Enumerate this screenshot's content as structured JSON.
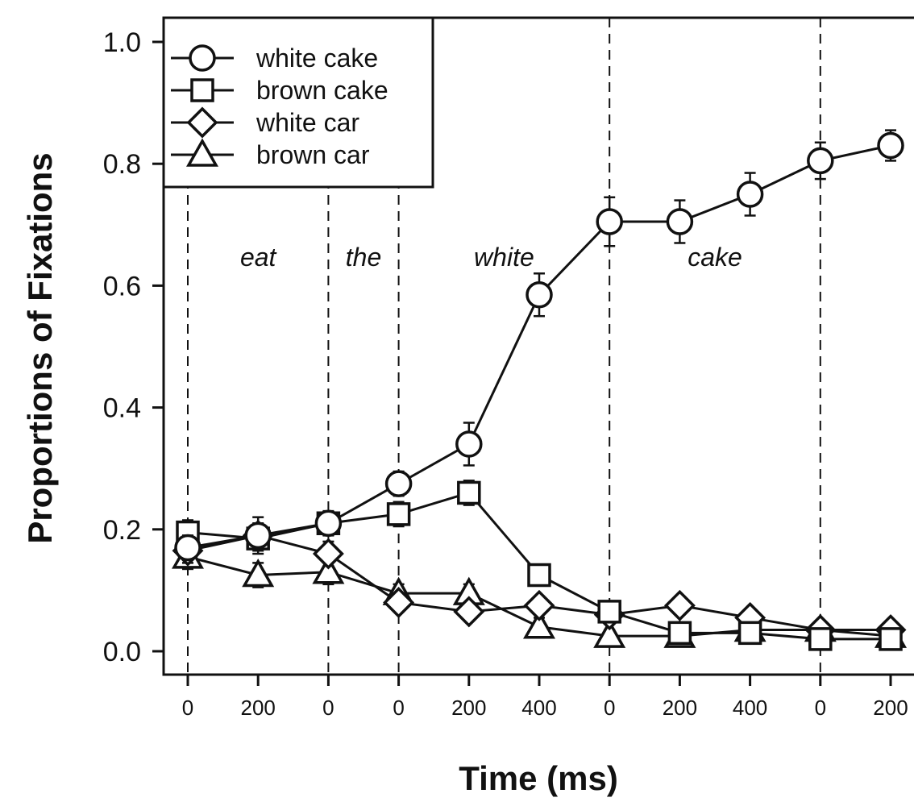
{
  "chart_data": {
    "type": "line",
    "xlabel": "Time (ms)",
    "ylabel": "Proportions of Fixations",
    "ylim": [
      0,
      1.0
    ],
    "yticks": [
      "0.0",
      "0.2",
      "0.4",
      "0.6",
      "0.8",
      "1.0"
    ],
    "x_tick_labels": [
      "0",
      "200",
      "0",
      "0",
      "200",
      "400",
      "0",
      "200",
      "400",
      "0",
      "200"
    ],
    "segments": [
      "eat",
      "the",
      "white",
      "cake"
    ],
    "segment_boundaries_at_tick": [
      0,
      2,
      3,
      6,
      9
    ],
    "legend_position": "top-left",
    "grid": false,
    "series": [
      {
        "name": "white cake",
        "marker": "circle",
        "values": [
          0.17,
          0.19,
          0.21,
          0.275,
          0.34,
          0.585,
          0.705,
          0.705,
          0.75,
          0.805,
          0.83
        ],
        "errors": [
          0.02,
          0.03,
          0.02,
          0.02,
          0.035,
          0.035,
          0.04,
          0.035,
          0.035,
          0.03,
          0.025
        ]
      },
      {
        "name": "brown cake",
        "marker": "square",
        "values": [
          0.195,
          0.185,
          0.21,
          0.225,
          0.26,
          0.125,
          0.065,
          0.03,
          0.03,
          0.02,
          0.02
        ],
        "errors": [
          0.02,
          0.02,
          0.015,
          0.02,
          0.02,
          0.015,
          0.015,
          0.01,
          0.01,
          0.01,
          0.01
        ]
      },
      {
        "name": "white car",
        "marker": "diamond",
        "values": [
          0.165,
          0.19,
          0.16,
          0.08,
          0.065,
          0.075,
          0.06,
          0.075,
          0.055,
          0.035,
          0.035
        ],
        "errors": [
          0.02,
          0.02,
          0.02,
          0.015,
          0.015,
          0.015,
          0.015,
          0.015,
          0.01,
          0.01,
          0.01
        ]
      },
      {
        "name": "brown car",
        "marker": "triangle",
        "values": [
          0.155,
          0.125,
          0.13,
          0.095,
          0.095,
          0.04,
          0.025,
          0.025,
          0.035,
          0.035,
          0.025
        ],
        "errors": [
          0.02,
          0.02,
          0.02,
          0.015,
          0.015,
          0.015,
          0.01,
          0.01,
          0.01,
          0.01,
          0.01
        ]
      }
    ]
  }
}
